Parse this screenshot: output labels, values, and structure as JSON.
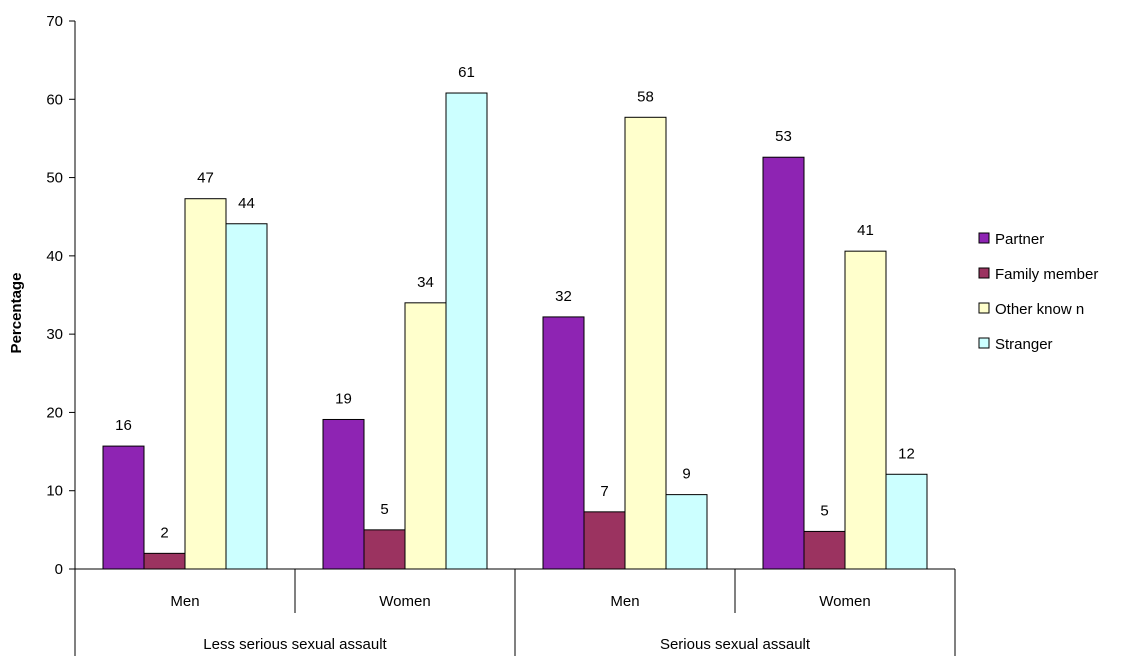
{
  "chart_data": {
    "type": "bar",
    "ylabel": "Percentage",
    "ylim": [
      0,
      70
    ],
    "yticks": [
      0,
      10,
      20,
      30,
      40,
      50,
      60,
      70
    ],
    "grid": false,
    "legend_position": "right",
    "categories": [
      "Men",
      "Women",
      "Men",
      "Women"
    ],
    "groups": [
      {
        "label": "Less serious sexual assault",
        "categories": [
          "Men",
          "Women"
        ]
      },
      {
        "label": "Serious sexual assault",
        "categories": [
          "Men",
          "Women"
        ]
      }
    ],
    "series": [
      {
        "name": "Partner",
        "color": "#8E24B3",
        "values": [
          15.7,
          19.1,
          32.2,
          52.6
        ],
        "labels": [
          "16",
          "19",
          "32",
          "53"
        ]
      },
      {
        "name": "Family member",
        "color": "#9B3360",
        "values": [
          2.0,
          5.0,
          7.3,
          4.8
        ],
        "labels": [
          "2",
          "5",
          "7",
          "5"
        ]
      },
      {
        "name": "Other know n",
        "color": "#FFFFCC",
        "values": [
          47.3,
          34.0,
          57.7,
          40.6
        ],
        "labels": [
          "47",
          "34",
          "58",
          "41"
        ]
      },
      {
        "name": "Stranger",
        "color": "#CCFFFF",
        "values": [
          44.1,
          60.8,
          9.5,
          12.1
        ],
        "labels": [
          "44",
          "61",
          "9",
          "12"
        ]
      }
    ]
  }
}
